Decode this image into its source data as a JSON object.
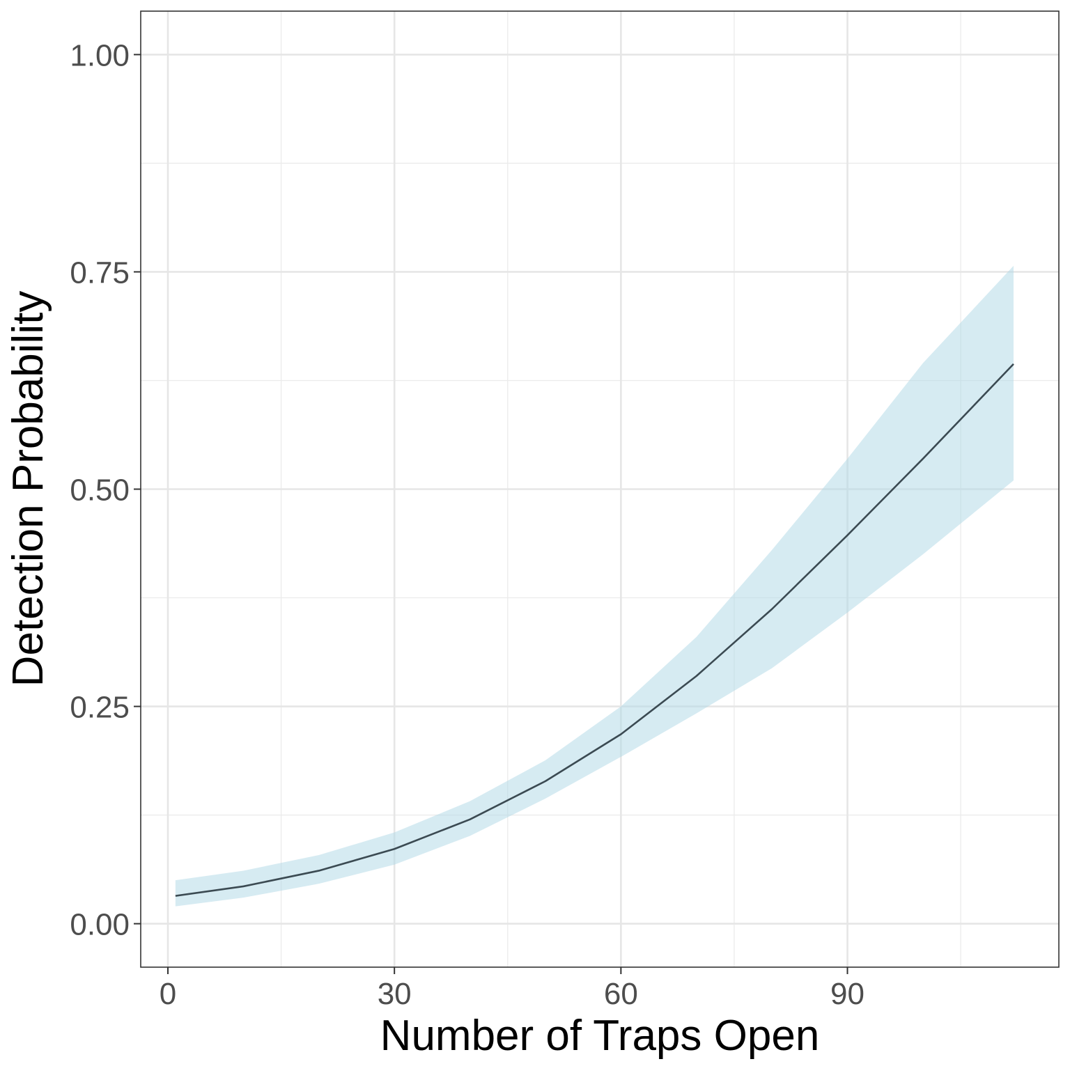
{
  "chart_data": {
    "type": "line",
    "title": "",
    "xlabel": "Number of Traps Open",
    "ylabel": "Detection Probability",
    "xlim": [
      -3.6,
      118
    ],
    "ylim": [
      -0.05,
      1.05
    ],
    "x_ticks": [
      0,
      30,
      60,
      90
    ],
    "x_tick_labels": [
      "0",
      "30",
      "60",
      "90"
    ],
    "y_ticks": [
      0.0,
      0.25,
      0.5,
      0.75,
      1.0
    ],
    "y_tick_labels": [
      "0.00",
      "0.25",
      "0.50",
      "0.75",
      "1.00"
    ],
    "x_minor_ticks": [
      15,
      45,
      75,
      105
    ],
    "y_minor_ticks": [
      0.125,
      0.375,
      0.625,
      0.875
    ],
    "grid": true,
    "series": [
      {
        "x": [
          1,
          10,
          20,
          30,
          40,
          50,
          60,
          70,
          80,
          90,
          100,
          112
        ],
        "y": [
          0.032,
          0.043,
          0.061,
          0.086,
          0.12,
          0.164,
          0.218,
          0.285,
          0.362,
          0.447,
          0.535,
          0.644
        ],
        "lower": [
          0.02,
          0.03,
          0.046,
          0.068,
          0.101,
          0.144,
          0.192,
          0.242,
          0.294,
          0.358,
          0.425,
          0.51
        ],
        "upper": [
          0.05,
          0.061,
          0.079,
          0.105,
          0.141,
          0.188,
          0.25,
          0.33,
          0.43,
          0.535,
          0.645,
          0.757
        ],
        "line_color": "#3b4a52",
        "band_color": "#add8e6"
      }
    ],
    "legend": "none"
  }
}
